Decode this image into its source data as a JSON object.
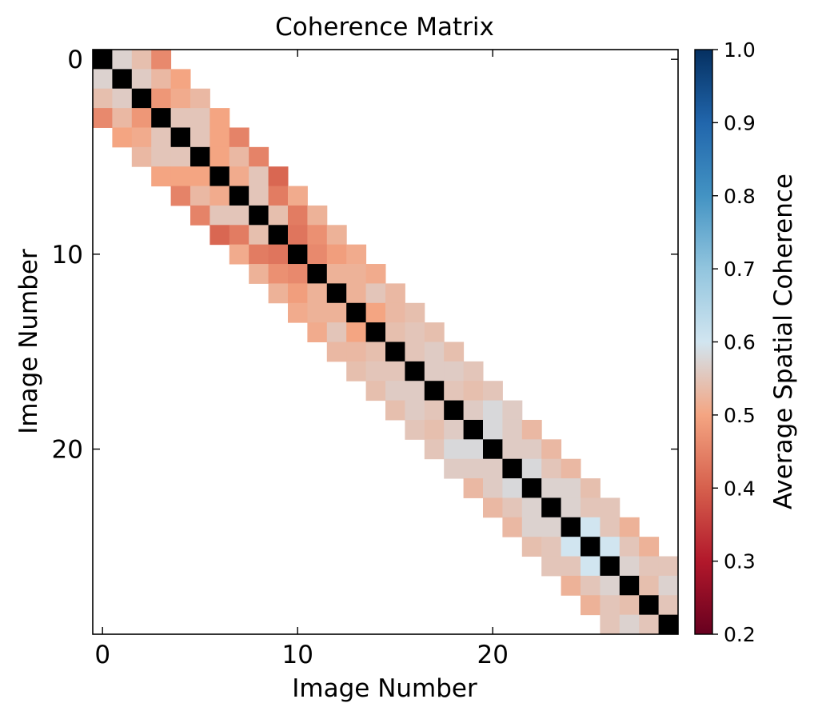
{
  "chart_data": {
    "type": "heatmap",
    "title": "Coherence Matrix",
    "xlabel": "Image Number",
    "ylabel": "Image Number",
    "size": 30,
    "bandwidth": 3,
    "xticks": [
      "0",
      "10",
      "20"
    ],
    "yticks": [
      "0",
      "10",
      "20"
    ],
    "colorbar": {
      "label": "Average Spatial Coherence",
      "range": [
        0.2,
        1.0
      ],
      "ticks": [
        "0.2",
        "0.3",
        "0.4",
        "0.5",
        "0.6",
        "0.7",
        "0.8",
        "0.9",
        "1.0"
      ],
      "colors": [
        "#67001f",
        "#b2182b",
        "#d6604d",
        "#f4a582",
        "#d1e5f0",
        "#92c5de",
        "#4393c3",
        "#2166ac",
        "#053061"
      ]
    },
    "diagonal_color": "#000000",
    "off_diagonal": [
      [
        0.57,
        0.56,
        0.48,
        0.55,
        0.55,
        0.5,
        0.51,
        0.55,
        0.54,
        0.43,
        0.46,
        0.52,
        0.52,
        0.5,
        0.54,
        0.55,
        0.56,
        0.55,
        0.56,
        0.58,
        0.56,
        0.58,
        0.57,
        0.57,
        0.6,
        0.6,
        0.57,
        0.54,
        0.55
      ],
      [
        0.54,
        0.53,
        0.51,
        0.55,
        0.5,
        0.53,
        0.55,
        0.44,
        0.44,
        0.47,
        0.49,
        0.52,
        0.55,
        0.53,
        0.55,
        0.56,
        0.56,
        0.54,
        0.58,
        0.56,
        0.56,
        0.55,
        0.57,
        0.55,
        0.55,
        0.55,
        0.55,
        0.57
      ],
      [
        0.46,
        0.5,
        0.53,
        0.5,
        0.45,
        0.45,
        0.41,
        0.51,
        0.52,
        0.52,
        0.51,
        0.51,
        0.53,
        0.54,
        0.54,
        0.54,
        0.55,
        0.55,
        0.56,
        0.53,
        0.53,
        0.53,
        0.54,
        0.55,
        0.52,
        0.52,
        0.55
      ]
    ]
  }
}
